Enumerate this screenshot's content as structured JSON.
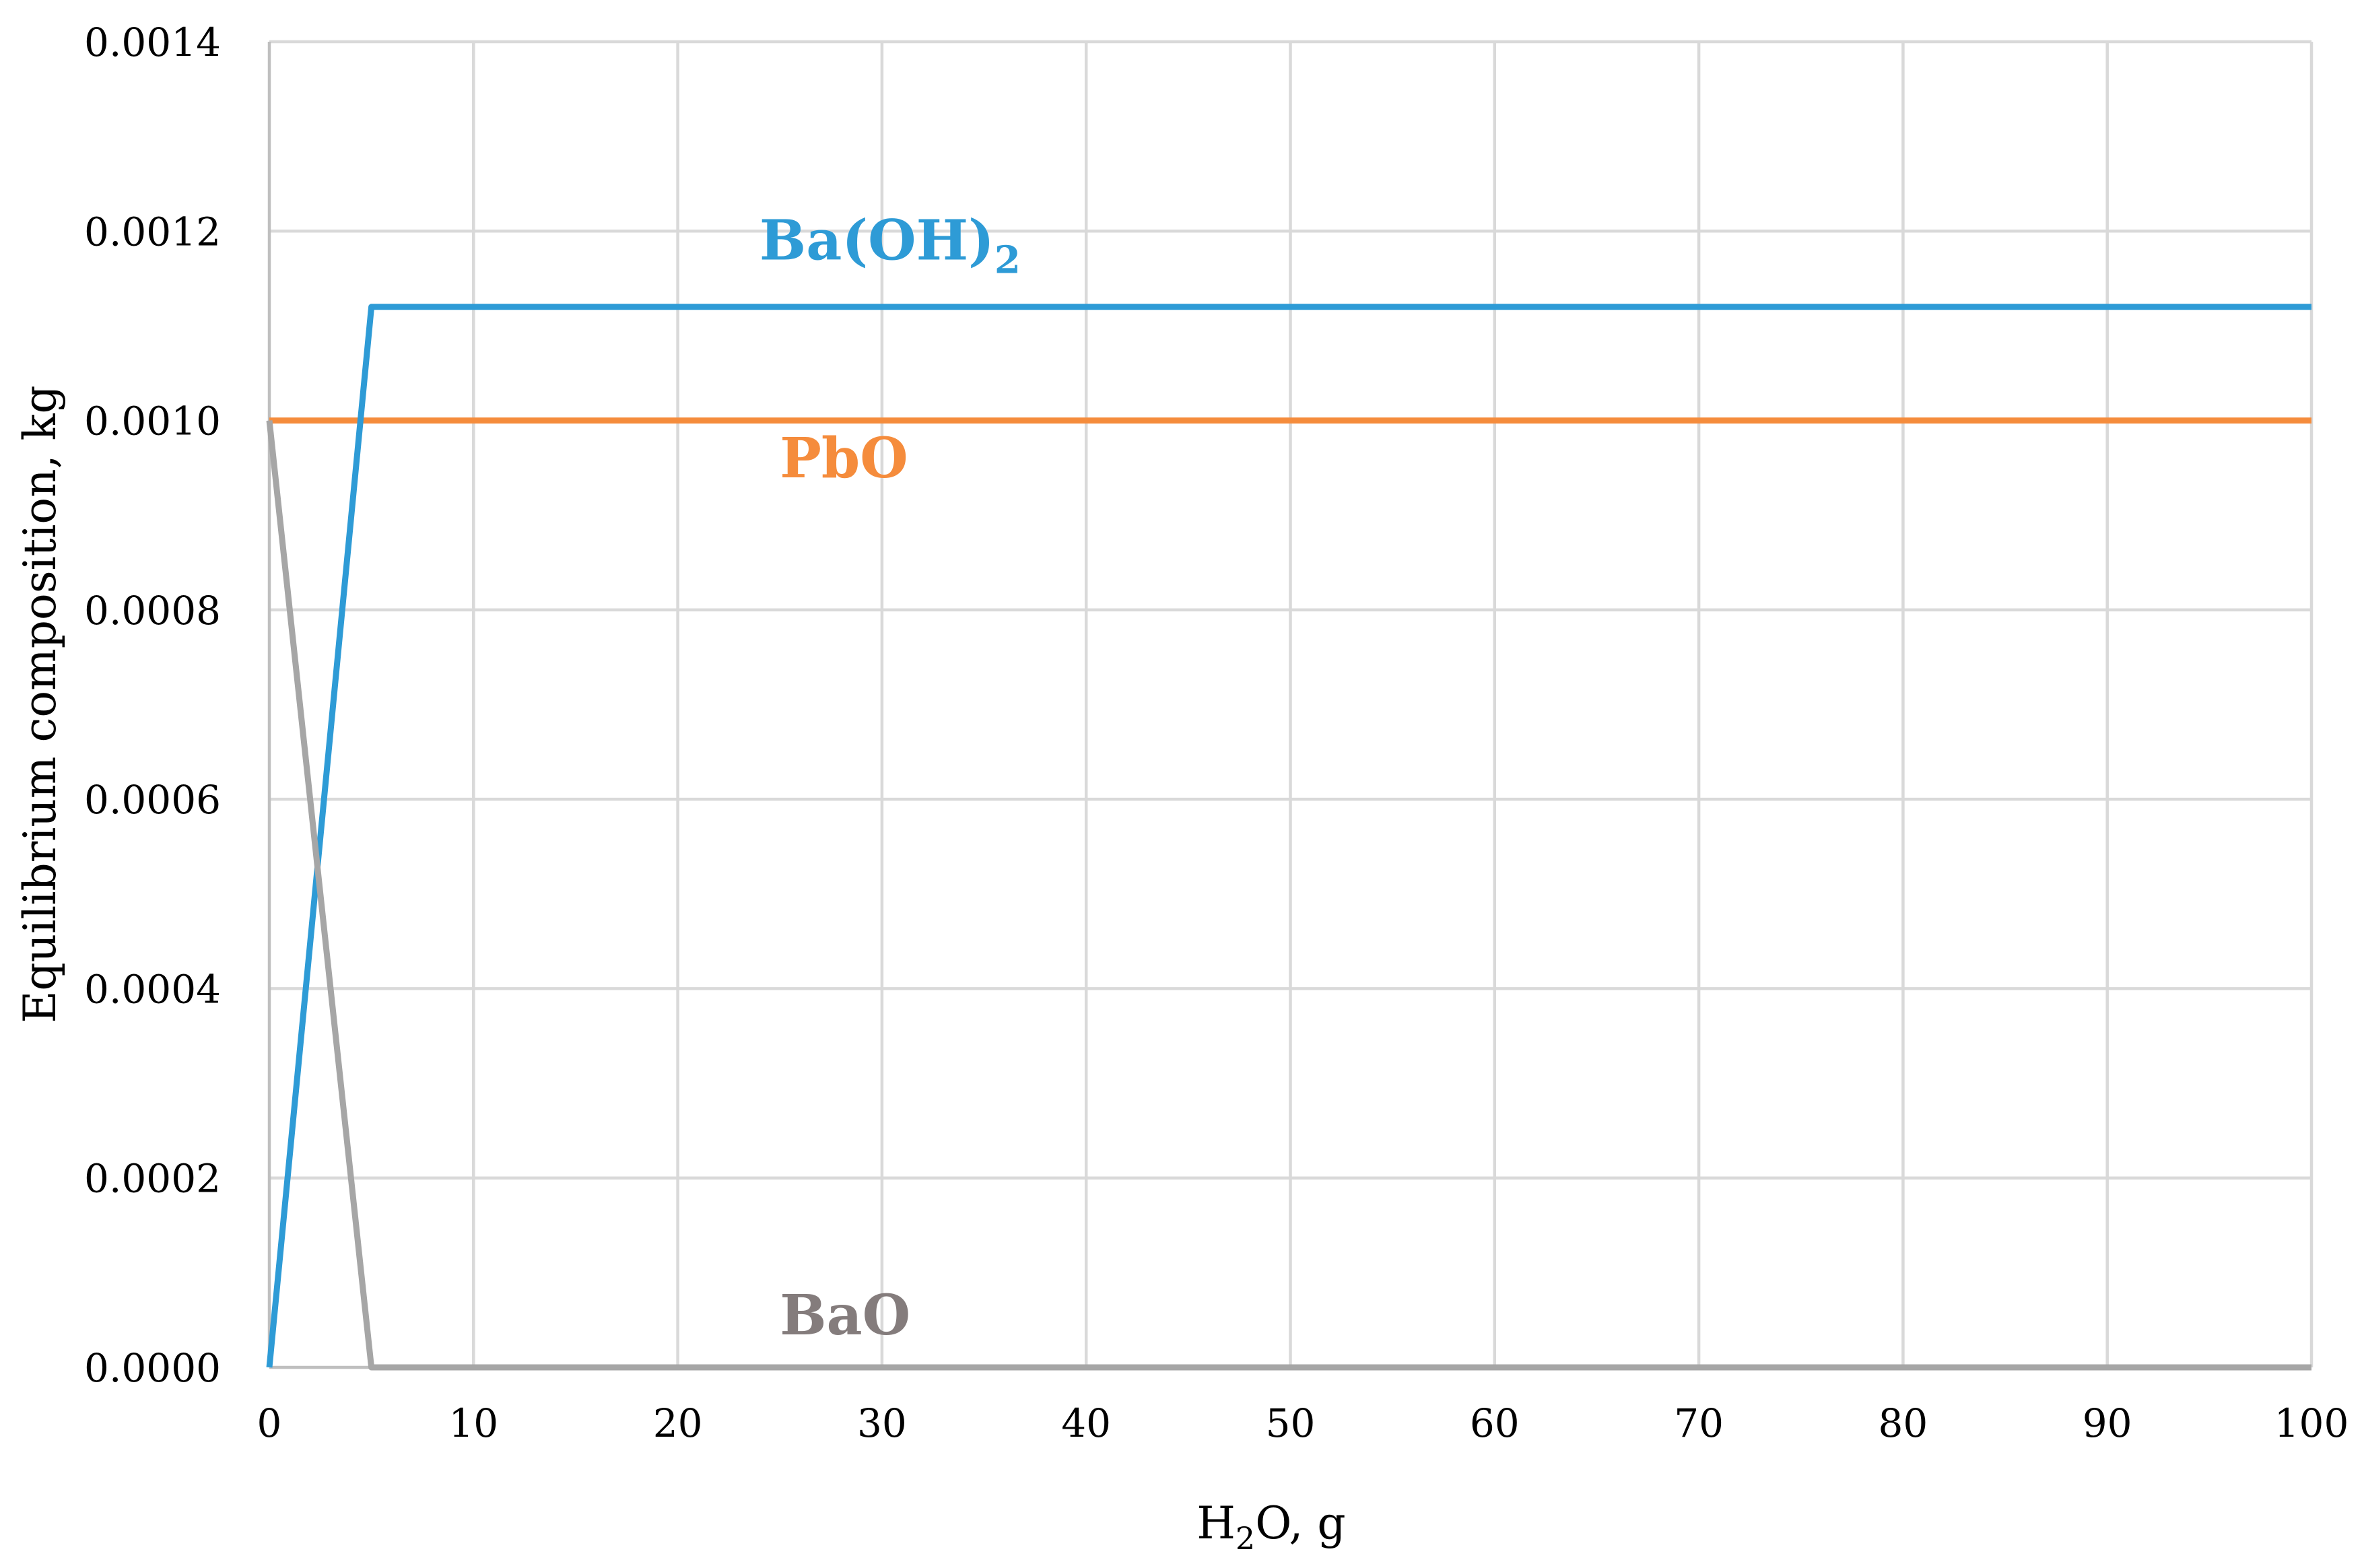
{
  "chart_data": {
    "type": "line",
    "title": "",
    "xlabel": {
      "base": "H",
      "sub": "2",
      "rest": "O, g"
    },
    "ylabel": "Equilibrium composition, kg",
    "xlim": [
      0,
      100
    ],
    "ylim": [
      0,
      0.0014
    ],
    "x_ticks": [
      0,
      10,
      20,
      30,
      40,
      50,
      60,
      70,
      80,
      90,
      100
    ],
    "x_tick_labels": [
      "0",
      "10",
      "20",
      "30",
      "40",
      "50",
      "60",
      "70",
      "80",
      "90",
      "100"
    ],
    "y_ticks": [
      0,
      0.0002,
      0.0004,
      0.0006,
      0.0008,
      0.001,
      0.0012,
      0.0014
    ],
    "y_tick_labels": [
      "0.0000",
      "0.0002",
      "0.0004",
      "0.0006",
      "0.0008",
      "0.0010",
      "0.0012",
      "0.0014"
    ],
    "grid": true,
    "legend": "none",
    "series": [
      {
        "name": "Ba(OH)2",
        "label": {
          "base": "Ba(OH)",
          "sub": "2",
          "x": 24,
          "y": 0.00117
        },
        "color": "#2e9bd6",
        "x": [
          0,
          5,
          100
        ],
        "y": [
          0,
          0.00112,
          0.00112
        ]
      },
      {
        "name": "PbO",
        "label": {
          "base": "PbO",
          "sub": "",
          "x": 25,
          "y": 0.00094
        },
        "color": "#f58c3c",
        "x": [
          0,
          100
        ],
        "y": [
          0.001,
          0.001
        ]
      },
      {
        "name": "BaO",
        "label": {
          "base": "BaO",
          "sub": "",
          "x": 25,
          "y": 3.49e-05
        },
        "color": "#a6a6a6",
        "label_color": "#847c7c",
        "x": [
          0,
          5,
          100
        ],
        "y": [
          0.001,
          0,
          0
        ]
      }
    ]
  }
}
